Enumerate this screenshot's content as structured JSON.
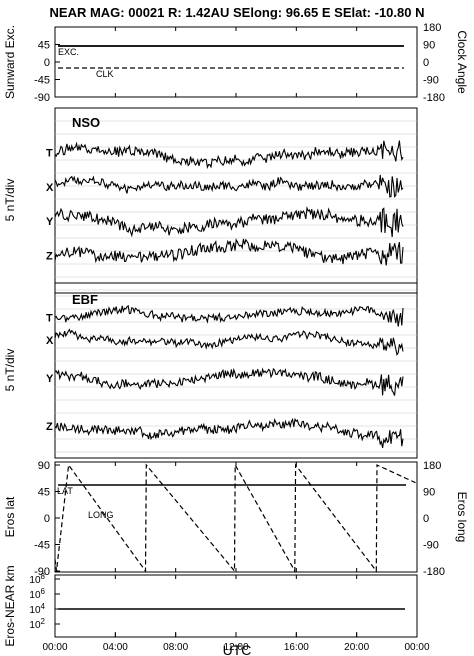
{
  "header": {
    "title": "NEAR MAG: 00021  R: 1.42AU  SElong:   96.65 E  SElat:  -10.80 N"
  },
  "chart_data": [
    {
      "id": "sunward",
      "type": "line",
      "ylabel": "Sunward Exc.",
      "ylabel_right": "Clock Angle",
      "yticks_left": [
        "45",
        "0",
        "-45",
        "-90"
      ],
      "yticks_right": [
        "180",
        "90",
        "0",
        "-90",
        "-180"
      ],
      "ylim": [
        -90,
        90
      ],
      "series": [
        {
          "name": "EXC.",
          "style": "solid",
          "value": 45,
          "units": "deg"
        },
        {
          "name": "CLK",
          "style": "dashed",
          "value": -10,
          "units": "deg"
        }
      ]
    },
    {
      "id": "nso",
      "type": "line",
      "title": "NSO",
      "ylabel": "5 nT/div",
      "grid": true,
      "traces": [
        "T",
        "X",
        "Y",
        "Z"
      ],
      "trace_levels": [
        8,
        6,
        4,
        2
      ],
      "trace_spread": 0.45,
      "trace_noise": [
        0.14,
        0.12,
        0.16,
        0.16
      ],
      "ylim": [
        0,
        10
      ]
    },
    {
      "id": "ebf",
      "type": "line",
      "title": "EBF",
      "ylabel": "5 nT/div",
      "grid": true,
      "traces": [
        "T",
        "X",
        "Y",
        "Z"
      ],
      "trace_levels": [
        8.6,
        7.2,
        4.8,
        1.8
      ],
      "trace_spread": 0.6,
      "trace_noise": [
        0.12,
        0.1,
        0.14,
        0.14
      ],
      "ylim": [
        0,
        10
      ]
    },
    {
      "id": "eros",
      "type": "line",
      "ylabel": "Eros lat",
      "ylabel_right": "Eros long",
      "yticks_left": [
        "90",
        "45",
        "0",
        "-45",
        "-90"
      ],
      "yticks_right": [
        "180",
        "90",
        "0",
        "-90",
        "-180"
      ],
      "ylim": [
        -90,
        90
      ],
      "series": [
        {
          "name": "LAT",
          "style": "solid",
          "value": 45
        },
        {
          "name": "LONG",
          "style": "dashed",
          "x": [
            0,
            0.1,
            0.9,
            6.0,
            6.05,
            11.9,
            11.95,
            15.9,
            15.95,
            21.3,
            21.35,
            23.9
          ],
          "y": [
            -140,
            -180,
            180,
            -180,
            180,
            -180,
            180,
            -180,
            180,
            -180,
            180,
            120
          ]
        }
      ]
    },
    {
      "id": "range",
      "type": "line",
      "ylabel": "Eros-NEAR km",
      "yscale": "log",
      "yticks_left": [
        "10^8",
        "10^6",
        "10^4",
        "10^2"
      ],
      "ylim_log10": [
        0,
        9
      ],
      "series": [
        {
          "name": "",
          "style": "solid",
          "log10_value": 4
        }
      ]
    }
  ],
  "xaxis": {
    "label": "UTC",
    "ticks": [
      "00:00",
      "04:00",
      "08:00",
      "12:00",
      "16:00",
      "20:00",
      "00:00"
    ],
    "range_hours": [
      0,
      24
    ]
  }
}
